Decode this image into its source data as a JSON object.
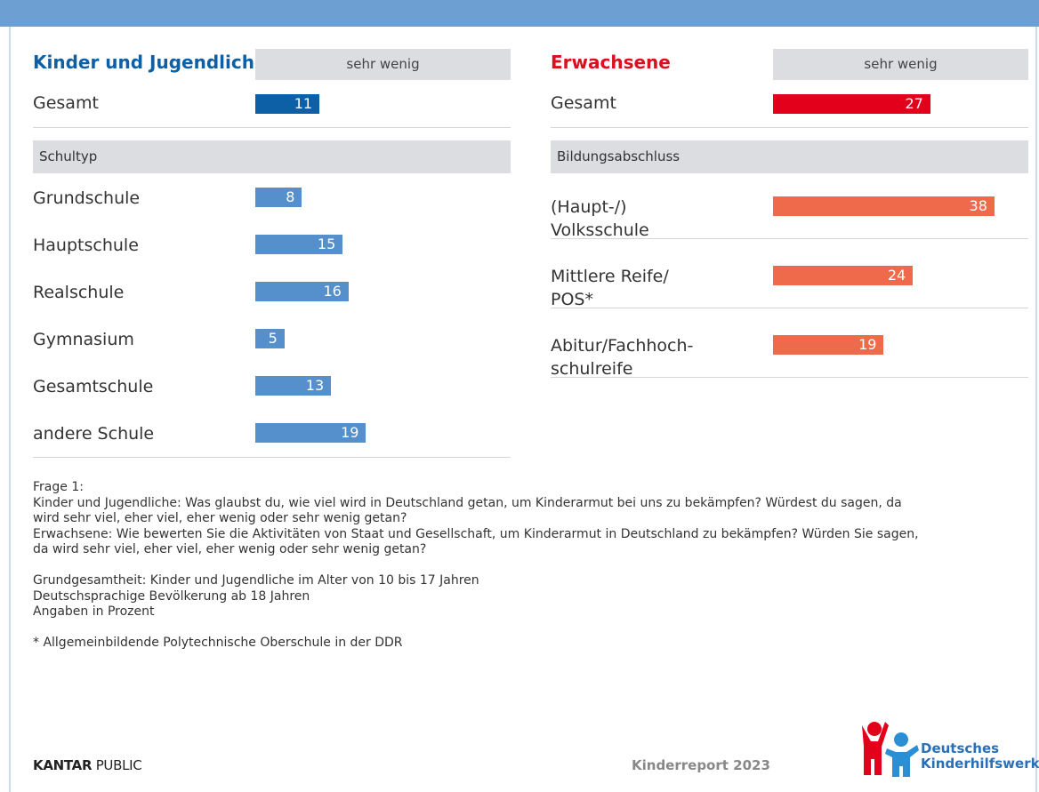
{
  "chart_data": [
    {
      "type": "bar",
      "title": "Kinder und Jugendliche",
      "title_color": "#0d5fa6",
      "column_header": "sehr wenig",
      "total": {
        "label": "Gesamt",
        "value": 11,
        "color": "#0d5fa6"
      },
      "section": "Schultyp",
      "categories": [
        "Grundschule",
        "Hauptschule",
        "Realschule",
        "Gymnasium",
        "Gesamtschule",
        "andere Schule"
      ],
      "values": [
        8,
        15,
        16,
        5,
        13,
        19
      ],
      "color": "#5590cc"
    },
    {
      "type": "bar",
      "title": "Erwachsene",
      "title_color": "#d9101e",
      "column_header": "sehr wenig",
      "total": {
        "label": "Gesamt",
        "value": 27,
        "color": "#e2001a"
      },
      "section": "Bildungsabschluss",
      "categories": [
        "(Haupt-/)\nVolksschule",
        "Mittlere Reife/\nPOS*",
        "Abitur/Fachhoch-\nschulreife"
      ],
      "values": [
        38,
        24,
        19
      ],
      "color": "#ee6a4a"
    }
  ],
  "notes": [
    [
      "Frage 1:",
      "Kinder und Jugendliche: Was glaubst du, wie viel wird in Deutschland getan, um Kinderarmut bei uns zu bekämpfen? Würdest du sagen, da",
      "wird sehr viel, eher viel, eher wenig oder sehr wenig getan?",
      "Erwachsene: Wie bewerten Sie die Aktivitäten von Staat und Gesellschaft, um Kinderarmut in Deutschland zu bekämpfen? Würden Sie sagen,",
      "da wird sehr viel, eher viel, eher wenig oder sehr wenig getan?"
    ],
    [
      "Grundgesamtheit: Kinder und Jugendliche im Alter von 10 bis 17 Jahren",
      "Deutschsprachige Bevölkerung ab 18 Jahren",
      "Angaben in Prozent"
    ],
    [
      "* Allgemeinbildende Polytechnische Oberschule in der DDR"
    ]
  ],
  "footer": {
    "left_bold": "KANTAR",
    "left": "PUBLIC",
    "center": "Kinderreport 2023",
    "logo": [
      "Deutsches",
      "Kinderhilfswerk"
    ]
  }
}
